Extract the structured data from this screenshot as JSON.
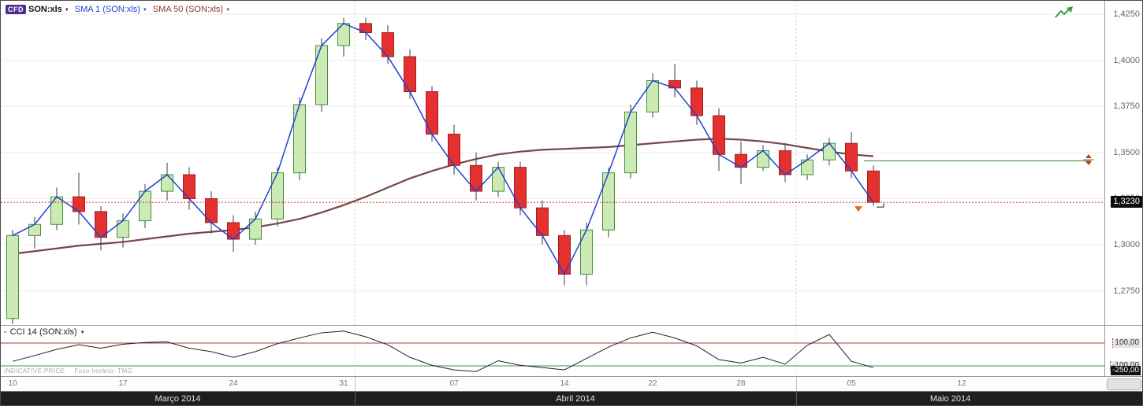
{
  "header": {
    "instrument_badge": "CFD",
    "instrument": "SON:xls",
    "dropdown_icon": "▼",
    "sma1_label": "SMA 1 (SON:xls)",
    "sma50_label": "SMA 50 (SON:xls)"
  },
  "colors": {
    "badge_bg": "#4f2d8f",
    "sma1": "#1c43cf",
    "sma50": "#7a4545",
    "up_fill": "#cdeab5",
    "up_stroke": "#3f8f3f",
    "down_fill": "#e53030",
    "down_stroke": "#a31d1d",
    "current_price_line": "#d93025",
    "order_line": "#4c8f4c",
    "cci_upper_line": "#c23232",
    "cci_lower_line": "#4a8f4a",
    "wick": "#3c3c3c"
  },
  "chart_data": [
    {
      "type": "candlestick",
      "instrument": "SON:xls",
      "ylim": [
        1.2565,
        1.4323
      ],
      "price_axis": {
        "tick_values": [
          1.425,
          1.4,
          1.375,
          1.35,
          1.325,
          1.3,
          1.275
        ],
        "tick_labels": [
          "1,4250",
          "1,4000",
          "1,3750",
          "1,3500",
          "1,3250",
          "1,3000",
          "1,2750"
        ],
        "current_price": 1.323,
        "current_badge": "1,3230"
      },
      "x_ticks": [
        {
          "index": 0,
          "label": "10"
        },
        {
          "index": 5,
          "label": "17"
        },
        {
          "index": 10,
          "label": "24"
        },
        {
          "index": 15,
          "label": "31"
        },
        {
          "index": 20,
          "label": "07"
        },
        {
          "index": 25,
          "label": "14"
        },
        {
          "index": 29,
          "label": "22"
        },
        {
          "index": 33,
          "label": "28"
        },
        {
          "index": 38,
          "label": "05"
        },
        {
          "index": 43,
          "label": "12"
        }
      ],
      "months": [
        {
          "label": "Março 2014",
          "start": 0,
          "end": 15
        },
        {
          "label": "Abril 2014",
          "start": 16,
          "end": 35
        },
        {
          "label": "Maio 2014",
          "start": 36,
          "end": null
        }
      ],
      "candles": [
        [
          1.26,
          1.308,
          1.257,
          1.305
        ],
        [
          1.305,
          1.315,
          1.298,
          1.311
        ],
        [
          1.311,
          1.331,
          1.308,
          1.326
        ],
        [
          1.326,
          1.339,
          1.311,
          1.318
        ],
        [
          1.318,
          1.321,
          1.297,
          1.304
        ],
        [
          1.304,
          1.317,
          1.2985,
          1.313
        ],
        [
          1.313,
          1.333,
          1.309,
          1.329
        ],
        [
          1.329,
          1.3445,
          1.324,
          1.338
        ],
        [
          1.338,
          1.342,
          1.319,
          1.325
        ],
        [
          1.325,
          1.329,
          1.306,
          1.312
        ],
        [
          1.312,
          1.316,
          1.296,
          1.303
        ],
        [
          1.303,
          1.318,
          1.3,
          1.314
        ],
        [
          1.314,
          1.342,
          1.31,
          1.339
        ],
        [
          1.339,
          1.38,
          1.335,
          1.376
        ],
        [
          1.376,
          1.412,
          1.372,
          1.408
        ],
        [
          1.408,
          1.423,
          1.402,
          1.42
        ],
        [
          1.42,
          1.423,
          1.411,
          1.415
        ],
        [
          1.415,
          1.419,
          1.398,
          1.402
        ],
        [
          1.402,
          1.406,
          1.379,
          1.383
        ],
        [
          1.383,
          1.386,
          1.356,
          1.36
        ],
        [
          1.36,
          1.365,
          1.338,
          1.343
        ],
        [
          1.343,
          1.35,
          1.324,
          1.329
        ],
        [
          1.329,
          1.345,
          1.326,
          1.342
        ],
        [
          1.342,
          1.345,
          1.316,
          1.32
        ],
        [
          1.32,
          1.324,
          1.3,
          1.305
        ],
        [
          1.305,
          1.308,
          1.278,
          1.284
        ],
        [
          1.284,
          1.312,
          1.278,
          1.308
        ],
        [
          1.308,
          1.342,
          1.304,
          1.339
        ],
        [
          1.339,
          1.376,
          1.336,
          1.372
        ],
        [
          1.372,
          1.393,
          1.369,
          1.389
        ],
        [
          1.389,
          1.398,
          1.38,
          1.385
        ],
        [
          1.385,
          1.389,
          1.365,
          1.37
        ],
        [
          1.37,
          1.374,
          1.34,
          1.349
        ],
        [
          1.349,
          1.356,
          1.333,
          1.342
        ],
        [
          1.342,
          1.354,
          1.34,
          1.351
        ],
        [
          1.351,
          1.355,
          1.334,
          1.338
        ],
        [
          1.338,
          1.349,
          1.335,
          1.346
        ],
        [
          1.346,
          1.358,
          1.343,
          1.355
        ],
        [
          1.355,
          1.361,
          1.336,
          1.34
        ],
        [
          1.34,
          1.343,
          1.321,
          1.323
        ]
      ],
      "series": [
        {
          "name": "SMA 1 (SON:xls)",
          "source": "close",
          "color": "#1c43cf"
        },
        {
          "name": "SMA 50 (SON:xls)",
          "color": "#7a4545",
          "values": [
            1.295,
            1.2965,
            1.298,
            1.2995,
            1.3005,
            1.3015,
            1.303,
            1.3045,
            1.306,
            1.307,
            1.308,
            1.3095,
            1.3115,
            1.314,
            1.3175,
            1.3215,
            1.326,
            1.331,
            1.336,
            1.34,
            1.3435,
            1.3465,
            1.349,
            1.3505,
            1.3515,
            1.352,
            1.3525,
            1.353,
            1.354,
            1.355,
            1.356,
            1.357,
            1.3575,
            1.357,
            1.356,
            1.3545,
            1.3525,
            1.3505,
            1.349,
            1.348
          ]
        }
      ],
      "order_level": 1.3455
    },
    {
      "type": "line",
      "name": "CCI 14 (SON:xls)",
      "collapse_glyph": "-",
      "levels": [
        {
          "value": 100,
          "label": "100,00"
        },
        {
          "value": -100,
          "label": "-100,00"
        },
        {
          "value": -250,
          "label": "-250,00"
        }
      ],
      "values": [
        -60,
        -10,
        45,
        85,
        55,
        90,
        105,
        110,
        55,
        25,
        -25,
        25,
        95,
        145,
        190,
        205,
        155,
        85,
        -25,
        -95,
        -135,
        -150,
        -55,
        -95,
        -115,
        -135,
        -35,
        65,
        145,
        195,
        145,
        75,
        -45,
        -75,
        -25,
        -85,
        80,
        175,
        -60,
        -115
      ]
    }
  ],
  "footer": {
    "indicative": "INDICATIVE PRICE",
    "timezone": "Fuso horário: TMG"
  }
}
